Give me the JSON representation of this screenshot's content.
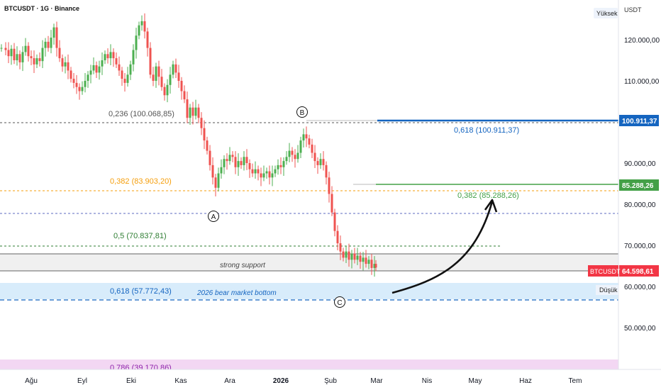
{
  "header": {
    "symbol_line": "BTCUSDT · 1G · Binance"
  },
  "scale": {
    "currency": "USDT",
    "high_badge": "Yüksek",
    "low_badge": "Düşük"
  },
  "colors": {
    "bull": "#4caf50",
    "bear": "#ef5350",
    "blue": "#1565c0",
    "green": "#43a047",
    "orange": "#f59e0b",
    "grey": "#555555",
    "price_tag": "#f23645",
    "pink_band": "#f3d7f3",
    "blue_band": "#d8ecfb"
  },
  "chart_data": {
    "type": "candlestick",
    "ylim": [
      42000,
      130000
    ],
    "x_tick_labels": [
      "Ağu",
      "Eyl",
      "Eki",
      "Kas",
      "Ara",
      "2026",
      "Şub",
      "Mar",
      "Nis",
      "May",
      "Haz",
      "Tem"
    ],
    "y_tick_labels": [
      {
        "value": 120000,
        "label": "120.000,00"
      },
      {
        "value": 110000,
        "label": "110.000,00"
      },
      {
        "value": 90000,
        "label": "90.000,00"
      },
      {
        "value": 80000,
        "label": "80.000,00"
      },
      {
        "value": 70000,
        "label": "70.000,00"
      },
      {
        "value": 60000,
        "label": "60.000,00"
      },
      {
        "value": 50000,
        "label": "50.000,00"
      }
    ],
    "price_tags": [
      {
        "value": 100911.37,
        "label": "100.911,37",
        "color": "#1565c0"
      },
      {
        "value": 85288.26,
        "label": "85.288,26",
        "color": "#43a047"
      },
      {
        "value": 64598.61,
        "label": "64.598,61",
        "color": "#f23645",
        "symbol": "BTCUSDT"
      }
    ],
    "series_close_path": [
      [
        0,
        118000
      ],
      [
        6,
        117500
      ],
      [
        10,
        116000
      ],
      [
        14,
        117800
      ],
      [
        18,
        115000
      ],
      [
        22,
        116500
      ],
      [
        26,
        114500
      ],
      [
        30,
        117000
      ],
      [
        34,
        118500
      ],
      [
        38,
        116000
      ],
      [
        42,
        115500
      ],
      [
        46,
        114000
      ],
      [
        50,
        115500
      ],
      [
        54,
        114800
      ],
      [
        58,
        118000
      ],
      [
        62,
        119500
      ],
      [
        66,
        118000
      ],
      [
        70,
        120500
      ],
      [
        74,
        123000
      ],
      [
        78,
        118000
      ],
      [
        82,
        115500
      ],
      [
        86,
        113500
      ],
      [
        90,
        114500
      ],
      [
        94,
        112500
      ],
      [
        98,
        110500
      ],
      [
        102,
        109500
      ],
      [
        106,
        108500
      ],
      [
        110,
        107500
      ],
      [
        114,
        108500
      ],
      [
        118,
        110000
      ],
      [
        122,
        111500
      ],
      [
        126,
        112500
      ],
      [
        130,
        113800
      ],
      [
        134,
        112000
      ],
      [
        138,
        113500
      ],
      [
        142,
        115000
      ],
      [
        146,
        116500
      ],
      [
        150,
        115500
      ],
      [
        154,
        117000
      ],
      [
        158,
        115500
      ],
      [
        162,
        114000
      ],
      [
        166,
        112500
      ],
      [
        170,
        110500
      ],
      [
        174,
        109500
      ],
      [
        178,
        111500
      ],
      [
        182,
        114000
      ],
      [
        186,
        117500
      ],
      [
        190,
        121000
      ],
      [
        194,
        123500
      ],
      [
        198,
        124500
      ],
      [
        202,
        122000
      ],
      [
        206,
        118000
      ],
      [
        210,
        111500
      ],
      [
        214,
        110000
      ],
      [
        218,
        113500
      ],
      [
        222,
        111000
      ],
      [
        226,
        108500
      ],
      [
        230,
        106500
      ],
      [
        234,
        109000
      ],
      [
        238,
        111500
      ],
      [
        242,
        114000
      ],
      [
        246,
        112000
      ],
      [
        250,
        110000
      ],
      [
        254,
        107500
      ],
      [
        258,
        105500
      ],
      [
        262,
        101000
      ],
      [
        266,
        103500
      ],
      [
        270,
        101500
      ],
      [
        274,
        103500
      ],
      [
        278,
        101000
      ],
      [
        282,
        98500
      ],
      [
        286,
        95500
      ],
      [
        290,
        93000
      ],
      [
        294,
        89500
      ],
      [
        298,
        86500
      ],
      [
        302,
        84000
      ],
      [
        306,
        87500
      ],
      [
        310,
        89000
      ],
      [
        314,
        91000
      ],
      [
        318,
        90500
      ],
      [
        322,
        92000
      ],
      [
        326,
        91500
      ],
      [
        330,
        89000
      ],
      [
        334,
        90500
      ],
      [
        338,
        89500
      ],
      [
        342,
        91500
      ],
      [
        346,
        90000
      ],
      [
        350,
        88500
      ],
      [
        354,
        87500
      ],
      [
        358,
        88500
      ],
      [
        362,
        87500
      ],
      [
        366,
        86500
      ],
      [
        370,
        87500
      ],
      [
        374,
        88000
      ],
      [
        378,
        86500
      ],
      [
        382,
        87500
      ],
      [
        386,
        88500
      ],
      [
        390,
        89500
      ],
      [
        394,
        89000
      ],
      [
        398,
        90500
      ],
      [
        402,
        91500
      ],
      [
        406,
        93000
      ],
      [
        410,
        92000
      ],
      [
        414,
        91000
      ],
      [
        418,
        92500
      ],
      [
        422,
        95500
      ],
      [
        426,
        97000
      ],
      [
        430,
        96000
      ],
      [
        434,
        94500
      ],
      [
        438,
        92500
      ],
      [
        442,
        90500
      ],
      [
        446,
        89500
      ],
      [
        450,
        91000
      ],
      [
        454,
        89500
      ],
      [
        458,
        86500
      ],
      [
        462,
        82500
      ],
      [
        466,
        78000
      ],
      [
        470,
        73500
      ],
      [
        474,
        70500
      ],
      [
        478,
        68500
      ],
      [
        482,
        67000
      ],
      [
        486,
        68500
      ],
      [
        490,
        66500
      ],
      [
        494,
        68000
      ],
      [
        498,
        66500
      ],
      [
        502,
        67500
      ],
      [
        506,
        66000
      ],
      [
        510,
        67000
      ],
      [
        514,
        65500
      ],
      [
        518,
        66500
      ],
      [
        522,
        64500
      ],
      [
        526,
        65500
      ],
      [
        528,
        64600
      ]
    ],
    "fib_levels": [
      {
        "ratio": "0,236",
        "value": 100068.85,
        "label": "0,236 (100.068,85)",
        "color": "#555555",
        "dash": true
      },
      {
        "ratio": "0,382",
        "value": 83903.2,
        "label": "0,382 (83.903,20)",
        "color": "#f59e0b",
        "dash": true
      },
      {
        "ratio": "0,5",
        "value": 70837.81,
        "label": "0,5 (70.837,81)",
        "color": "#2e7d32",
        "dash": true
      },
      {
        "ratio": "0,618",
        "value": 57772.43,
        "label": "0,618 (57.772,43)",
        "color": "#1565c0",
        "dash": true
      },
      {
        "ratio": "0,786",
        "value": 39170.86,
        "label": "0,786 (39.170,86)",
        "color": "#8e24aa",
        "dash": false
      }
    ],
    "target_levels": [
      {
        "value": 100911.37,
        "label": "0,618 (100.911,37)",
        "color": "#1565c0"
      },
      {
        "value": 85288.26,
        "label": "0,382 (85.288,26)",
        "color": "#43a047"
      }
    ],
    "zones": [
      {
        "label": "strong support",
        "from": 64300,
        "to": 68200
      },
      {
        "label": "2026 bear market bottom",
        "from": 57800,
        "to": 62000
      }
    ],
    "wave_labels": [
      "A",
      "B",
      "C"
    ]
  }
}
